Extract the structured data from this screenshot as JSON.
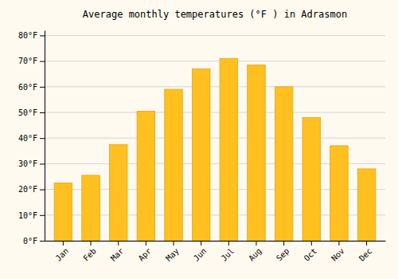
{
  "chart_data": {
    "type": "bar",
    "title": "Average monthly temperatures (°F ) in Adrasmon",
    "categories": [
      "Jan",
      "Feb",
      "Mar",
      "Apr",
      "May",
      "Jun",
      "Jul",
      "Aug",
      "Sep",
      "Oct",
      "Nov",
      "Dec"
    ],
    "values": [
      22.5,
      25.5,
      37.5,
      50.5,
      59,
      67,
      71,
      68.5,
      60,
      48,
      37,
      28
    ],
    "color": "#FFC020",
    "ylim": [
      0,
      82
    ],
    "yticks": [
      {
        "value": 0,
        "label": "0°F"
      },
      {
        "value": 10,
        "label": "10°F"
      },
      {
        "value": 20,
        "label": "20°F"
      },
      {
        "value": 30,
        "label": "30°F"
      },
      {
        "value": 40,
        "label": "40°F"
      },
      {
        "value": 50,
        "label": "50°F"
      },
      {
        "value": 60,
        "label": "60°F"
      },
      {
        "value": 70,
        "label": "70°F"
      },
      {
        "value": 80,
        "label": "80°F"
      }
    ],
    "grid": true
  }
}
